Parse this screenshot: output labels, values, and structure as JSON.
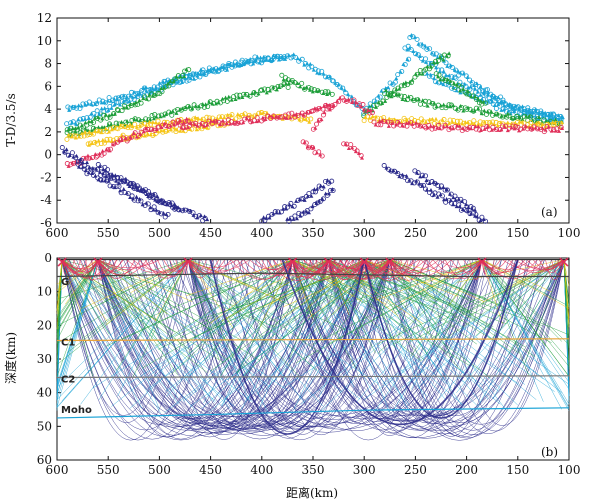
{
  "chart_data": [
    {
      "type": "scatter",
      "panel_label": "(a)",
      "ylabel": "T-D/3.5/s",
      "xlim": [
        600,
        100
      ],
      "ylim": [
        -6,
        12
      ],
      "x_ticks": [
        "600",
        "550",
        "500",
        "450",
        "400",
        "350",
        "300",
        "250",
        "200",
        "150",
        "100"
      ],
      "y_ticks": [
        "12",
        "10",
        "8",
        "6",
        "4",
        "2",
        "0",
        "-2",
        "-4",
        "-6"
      ],
      "colors": {
        "cyan": "#1aa3d6",
        "green": "#1e9e3a",
        "yellow": "#f5c518",
        "red": "#e0305a",
        "navy": "#2a2a8a"
      },
      "series": [
        {
          "color": "cyan",
          "segments": [
            [
              [
                590,
                4
              ],
              [
                530,
                5.2
              ],
              [
                470,
                7.0
              ],
              [
                400,
                8.5
              ],
              [
                370,
                8.5
              ]
            ],
            [
              [
                590,
                2.5
              ],
              [
                540,
                4.5
              ],
              [
                480,
                6.5
              ],
              [
                420,
                8.0
              ],
              [
                375,
                8.6
              ]
            ],
            [
              [
                370,
                8.7
              ],
              [
                330,
                6.5
              ],
              [
                300,
                3.8
              ]
            ],
            [
              [
                300,
                3.8
              ],
              [
                270,
                6.5
              ],
              [
                255,
                8.8
              ]
            ],
            [
              [
                255,
                10.5
              ],
              [
                220,
                8.0
              ],
              [
                180,
                5.5
              ],
              [
                150,
                4.0
              ],
              [
                105,
                3.2
              ]
            ],
            [
              [
                260,
                9.5
              ],
              [
                210,
                6.5
              ],
              [
                160,
                4.3
              ],
              [
                105,
                3.2
              ]
            ],
            [
              [
                240,
                7.0
              ],
              [
                190,
                5.0
              ],
              [
                150,
                3.5
              ],
              [
                105,
                3.0
              ]
            ]
          ]
        },
        {
          "color": "green",
          "segments": [
            [
              [
                590,
                2.0
              ],
              [
                540,
                3.8
              ],
              [
                500,
                5.5
              ],
              [
                470,
                7.5
              ]
            ],
            [
              [
                590,
                1.8
              ],
              [
                520,
                3.0
              ],
              [
                450,
                4.5
              ],
              [
                400,
                5.5
              ],
              [
                370,
                6.2
              ]
            ],
            [
              [
                380,
                6.8
              ],
              [
                345,
                5.5
              ],
              [
                330,
                5.2
              ]
            ],
            [
              [
                300,
                3.5
              ],
              [
                270,
                5.5
              ],
              [
                240,
                7.5
              ],
              [
                215,
                9.0
              ]
            ],
            [
              [
                280,
                5.5
              ],
              [
                240,
                4.5
              ],
              [
                200,
                4.0
              ],
              [
                150,
                3.3
              ],
              [
                105,
                2.8
              ]
            ],
            [
              [
                230,
                7.0
              ],
              [
                200,
                5.5
              ],
              [
                180,
                4.2
              ]
            ]
          ]
        },
        {
          "color": "yellow",
          "segments": [
            [
              [
                590,
                1.5
              ],
              [
                540,
                2.4
              ],
              [
                470,
                3.0
              ],
              [
                400,
                3.5
              ],
              [
                350,
                3.0
              ]
            ],
            [
              [
                300,
                3.2
              ],
              [
                260,
                3.0
              ],
              [
                200,
                2.8
              ],
              [
                150,
                2.7
              ],
              [
                105,
                2.6
              ]
            ],
            [
              [
                570,
                1.0
              ],
              [
                500,
                2.0
              ],
              [
                430,
                2.8
              ]
            ]
          ]
        },
        {
          "color": "red",
          "segments": [
            [
              [
                590,
                -1.0
              ],
              [
                560,
                0.0
              ],
              [
                530,
                1.5
              ],
              [
                500,
                2.5
              ],
              [
                470,
                3.0
              ]
            ],
            [
              [
                480,
                2.5
              ],
              [
                420,
                3.0
              ],
              [
                380,
                3.3
              ],
              [
                350,
                3.8
              ],
              [
                330,
                4.5
              ]
            ],
            [
              [
                350,
                2.2
              ],
              [
                335,
                4.0
              ],
              [
                320,
                5.0
              ],
              [
                305,
                4.5
              ],
              [
                290,
                3.5
              ]
            ],
            [
              [
                290,
                2.8
              ],
              [
                240,
                2.5
              ],
              [
                200,
                2.3
              ],
              [
                150,
                2.3
              ],
              [
                105,
                2.2
              ]
            ],
            [
              [
                320,
                1.0
              ],
              [
                310,
                0.5
              ],
              [
                300,
                -0.5
              ]
            ],
            [
              [
                360,
                1.0
              ],
              [
                340,
                0.0
              ]
            ]
          ]
        },
        {
          "color": "navy",
          "segments": [
            [
              [
                595,
                0.5
              ],
              [
                560,
                -1.5
              ],
              [
                520,
                -3.0
              ],
              [
                480,
                -4.8
              ]
            ],
            [
              [
                580,
                -1.0
              ],
              [
                540,
                -3.0
              ],
              [
                490,
                -5.5
              ]
            ],
            [
              [
                560,
                -1.0
              ],
              [
                500,
                -4.0
              ],
              [
                450,
                -5.9
              ]
            ],
            [
              [
                400,
                -5.8
              ],
              [
                360,
                -4.0
              ],
              [
                330,
                -2.0
              ]
            ],
            [
              [
                330,
                -3.0
              ],
              [
                355,
                -5.0
              ],
              [
                380,
                -6.0
              ]
            ],
            [
              [
                280,
                -1.0
              ],
              [
                240,
                -3.0
              ],
              [
                200,
                -5.0
              ],
              [
                180,
                -5.9
              ]
            ],
            [
              [
                250,
                -1.5
              ],
              [
                215,
                -3.5
              ],
              [
                190,
                -5.0
              ]
            ]
          ]
        }
      ]
    },
    {
      "type": "line",
      "panel_label": "(b)",
      "xlabel": "距离(km)",
      "ylabel": "深度(km)",
      "xlim": [
        600,
        100
      ],
      "ylim": [
        0,
        60
      ],
      "x_ticks": [
        "600",
        "550",
        "500",
        "450",
        "400",
        "350",
        "300",
        "250",
        "200",
        "150",
        "100"
      ],
      "y_ticks": [
        "0",
        "10",
        "20",
        "30",
        "40",
        "50",
        "60"
      ],
      "interfaces": [
        {
          "label": "G",
          "points": [
            [
              600,
              5.5
            ],
            [
              500,
              5
            ],
            [
              400,
              4.5
            ],
            [
              300,
              5
            ],
            [
              200,
              5.5
            ],
            [
              100,
              5.5
            ]
          ],
          "color": "#444444"
        },
        {
          "label": "C1",
          "points": [
            [
              600,
              24.5
            ],
            [
              100,
              24
            ]
          ],
          "color": "#e8a33a"
        },
        {
          "label": "C2",
          "points": [
            [
              600,
              35.5
            ],
            [
              100,
              35
            ]
          ],
          "color": "#777777"
        },
        {
          "label": "Moho",
          "points": [
            [
              600,
              47.5
            ],
            [
              450,
              46.5
            ],
            [
              300,
              45.2
            ],
            [
              100,
              44.5
            ]
          ],
          "color": "#1aa3d6"
        }
      ],
      "shots_km": [
        595,
        560,
        472,
        370,
        335,
        300,
        275,
        185,
        105
      ],
      "colors": {
        "cyan": "#1aa3d6",
        "green": "#1e9e3a",
        "yellow": "#e8c000",
        "red": "#e0305a",
        "navy": "#2a2a8a",
        "interface": "#222222",
        "shot": "#e0305a"
      }
    }
  ]
}
